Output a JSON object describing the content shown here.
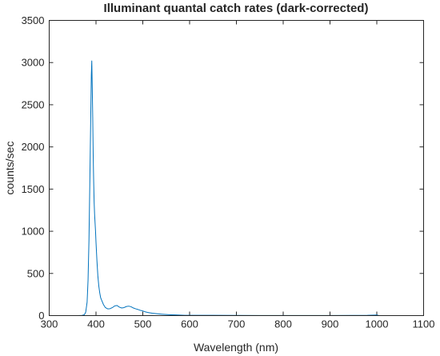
{
  "chart_data": {
    "type": "line",
    "title": "Illuminant quantal catch rates (dark-corrected)",
    "xlabel": "Wavelength (nm)",
    "ylabel": "counts/sec",
    "xlim": [
      300,
      1100
    ],
    "ylim": [
      0,
      3500
    ],
    "xticks": [
      300,
      400,
      500,
      600,
      700,
      800,
      900,
      1000,
      1100
    ],
    "yticks": [
      0,
      500,
      1000,
      1500,
      2000,
      2500,
      3000,
      3500
    ],
    "grid": false,
    "series": [
      {
        "color": "#0072BD",
        "x": [
          350,
          360,
          370,
          375,
          378,
          381,
          383,
          385,
          387,
          389,
          390,
          391,
          392,
          393,
          394,
          395,
          396,
          397,
          398,
          399,
          400,
          402,
          404,
          406,
          408,
          410,
          413,
          416,
          420,
          425,
          430,
          435,
          440,
          445,
          450,
          455,
          460,
          465,
          470,
          475,
          480,
          485,
          490,
          495,
          500,
          505,
          510,
          520,
          530,
          540,
          550,
          560,
          570,
          580,
          590,
          600,
          650,
          700,
          750,
          800,
          850,
          900,
          950,
          980,
          995,
          1000,
          1005
        ],
        "y": [
          0,
          0,
          2,
          10,
          40,
          160,
          420,
          900,
          1650,
          2450,
          2850,
          3020,
          2700,
          2350,
          1900,
          1600,
          1350,
          1200,
          1100,
          1000,
          870,
          650,
          470,
          350,
          270,
          210,
          170,
          130,
          95,
          80,
          82,
          95,
          115,
          120,
          100,
          90,
          95,
          108,
          112,
          105,
          90,
          80,
          72,
          62,
          55,
          45,
          38,
          28,
          22,
          17,
          13,
          10,
          8,
          6,
          4,
          4,
          3,
          2,
          1,
          1,
          1,
          1,
          2,
          3,
          6,
          7,
          0
        ]
      }
    ]
  }
}
